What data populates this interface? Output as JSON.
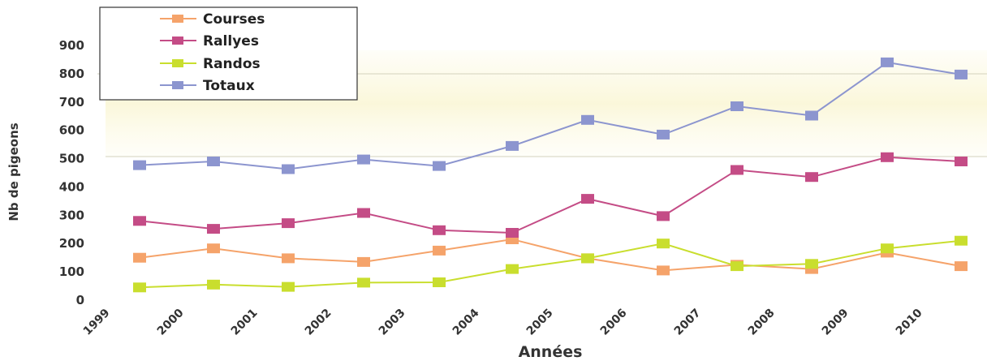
{
  "chart_data": {
    "type": "line",
    "x": [
      "1999",
      "2000",
      "2001",
      "2002",
      "2003",
      "2004",
      "2005",
      "2006",
      "2007",
      "2008",
      "2009",
      "2010"
    ],
    "xlabel": "Années",
    "ylabel": "Nb de pigeons",
    "ylim": [
      0,
      900
    ],
    "yticks": [
      0,
      100,
      200,
      300,
      400,
      500,
      600,
      700,
      800,
      900
    ],
    "grid": false,
    "legend_position": "top-left",
    "series": [
      {
        "name": "Courses",
        "color": "#f5a36a",
        "values": [
          150,
          183,
          148,
          135,
          175,
          215,
          148,
          105,
          125,
          110,
          168,
          120
        ]
      },
      {
        "name": "Rallyes",
        "color": "#c44c86",
        "values": [
          280,
          252,
          272,
          308,
          247,
          238,
          358,
          297,
          460,
          435,
          505,
          490
        ]
      },
      {
        "name": "Randos",
        "color": "#c9de2e",
        "values": [
          45,
          55,
          47,
          62,
          63,
          110,
          148,
          200,
          120,
          128,
          183,
          210
        ]
      },
      {
        "name": "Totaux",
        "color": "#8c95cf",
        "values": [
          477,
          490,
          463,
          497,
          474,
          545,
          637,
          585,
          685,
          652,
          840,
          797
        ]
      }
    ]
  }
}
